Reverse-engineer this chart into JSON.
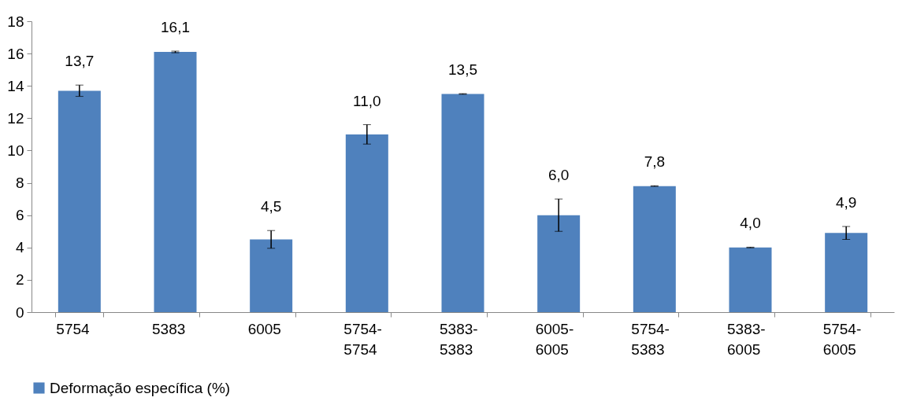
{
  "chart_data": {
    "type": "bar",
    "categories": [
      "5754",
      "5383",
      "6005",
      "5754-5754",
      "5383-5383",
      "6005-6005",
      "5754-5383",
      "5383-6005",
      "5754-6005"
    ],
    "series": [
      {
        "name": "Deformação específica (%)",
        "color": "#4f81bd",
        "values": [
          13.7,
          16.1,
          4.5,
          11.0,
          13.5,
          6.0,
          7.8,
          4.0,
          4.9
        ],
        "errors": [
          0.35,
          0.05,
          0.55,
          0.6,
          0.02,
          1.0,
          0.02,
          0.02,
          0.4
        ],
        "value_labels": [
          "13,7",
          "16,1",
          "4,5",
          "11,0",
          "13,5",
          "6,0",
          "7,8",
          "4,0",
          "4,9"
        ]
      }
    ],
    "ylim": [
      0,
      18
    ],
    "yticks": [
      0,
      2,
      4,
      6,
      8,
      10,
      12,
      14,
      16,
      18
    ],
    "grid": false,
    "legend": "bottom"
  }
}
